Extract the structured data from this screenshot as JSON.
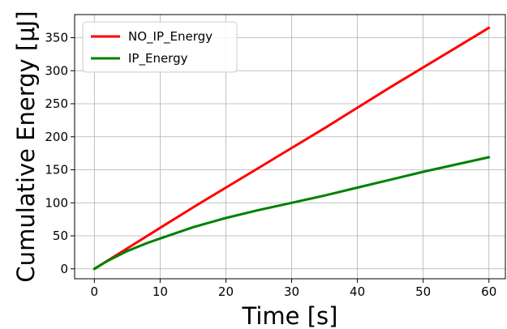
{
  "chart_data": {
    "type": "line",
    "title": "",
    "xlabel": "Time [s]",
    "ylabel": "Cumulative Energy [μJ]",
    "xlim": [
      -3,
      62.5
    ],
    "ylim": [
      -15,
      385
    ],
    "xticks": [
      0,
      10,
      20,
      30,
      40,
      50,
      60
    ],
    "yticks": [
      0,
      50,
      100,
      150,
      200,
      250,
      300,
      350
    ],
    "grid": true,
    "legend_position": "top-left",
    "series": [
      {
        "name": "NO_IP_Energy",
        "color": "#ff0000",
        "x": [
          0,
          5,
          10,
          15,
          20,
          25,
          30,
          35,
          40,
          45,
          50,
          55,
          60
        ],
        "y": [
          0,
          31,
          62,
          93,
          123,
          153,
          183,
          213,
          244,
          275,
          305,
          335,
          365
        ]
      },
      {
        "name": "IP_Energy",
        "color": "#008000",
        "x": [
          0,
          2,
          5,
          8,
          10,
          15,
          20,
          25,
          30,
          35,
          40,
          45,
          50,
          55,
          60
        ],
        "y": [
          0,
          12,
          27,
          39,
          46,
          63,
          77,
          89,
          100,
          111,
          123,
          135,
          147,
          158,
          169
        ]
      }
    ]
  }
}
